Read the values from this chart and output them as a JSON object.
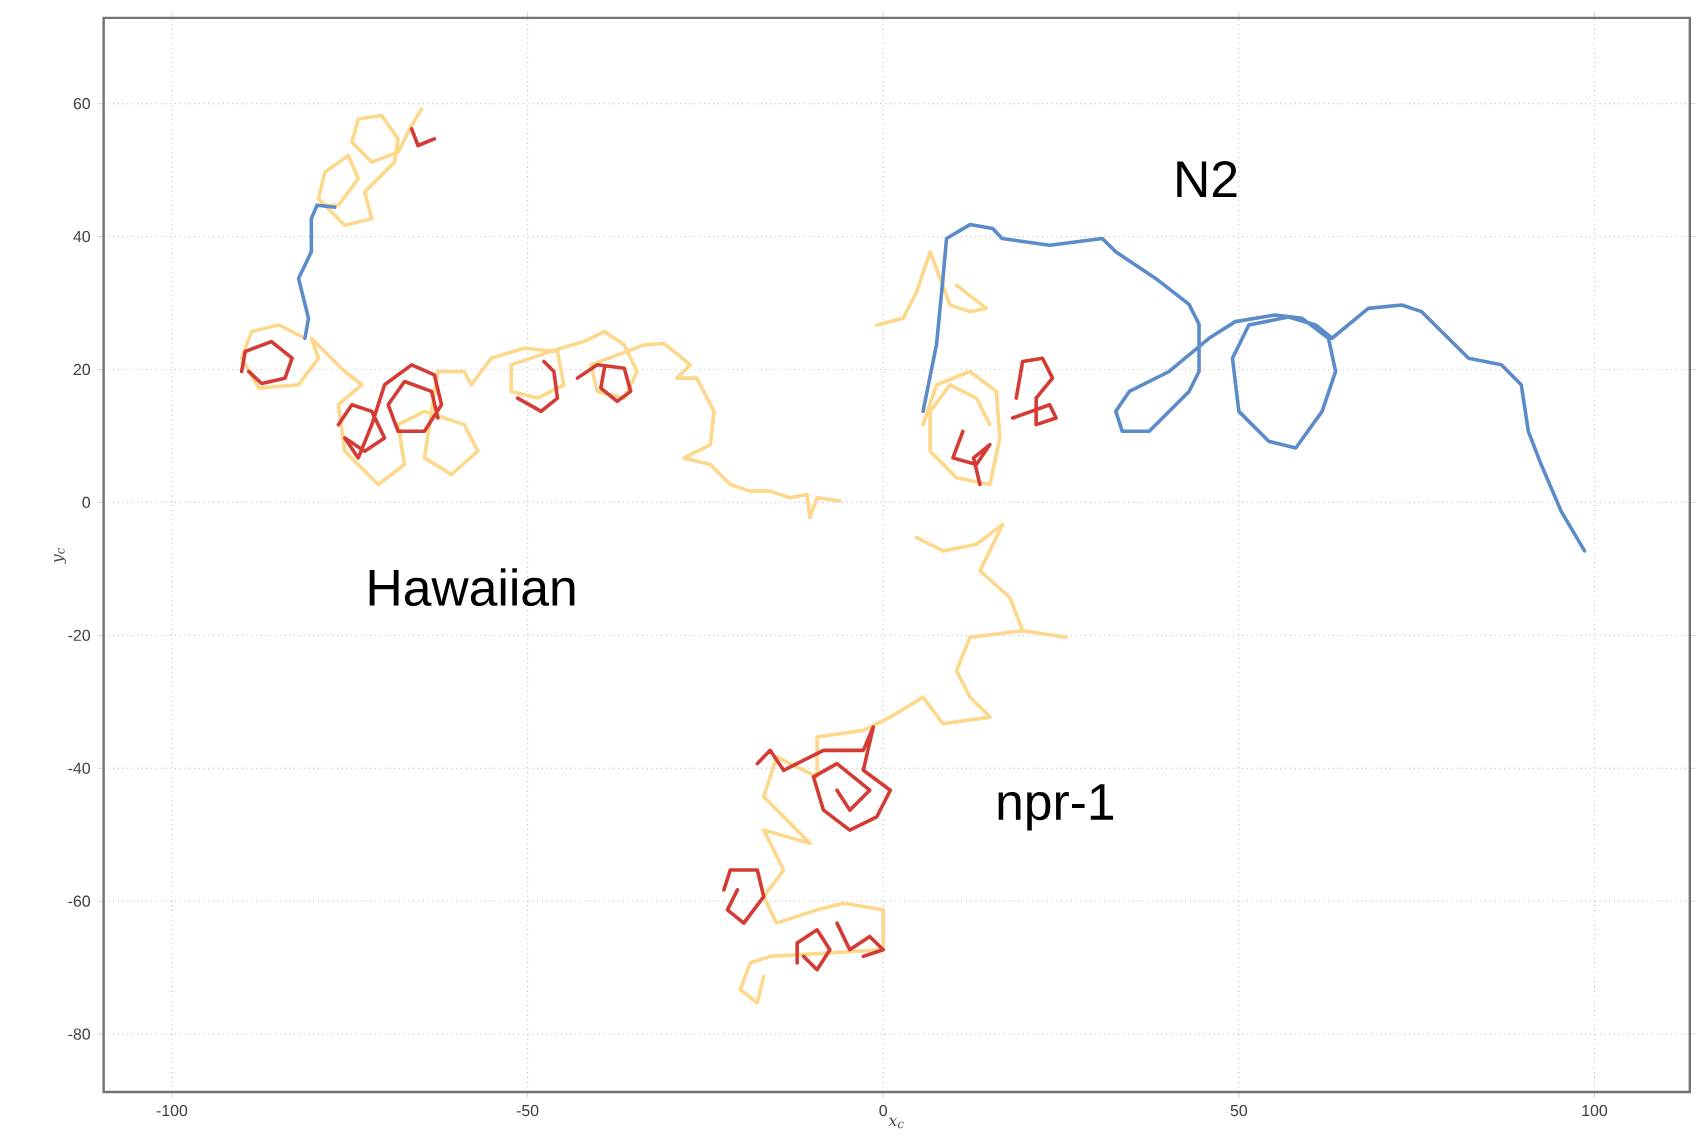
{
  "chart_data": {
    "type": "line",
    "xlabel": "x$_{c}$",
    "ylabel": "y$_{c}$",
    "xlim": [
      -109.6,
      113.4
    ],
    "ylim": [
      -88.7,
      72.9
    ],
    "xticks": [
      -100,
      -50,
      0,
      50,
      100
    ],
    "yticks": [
      -80,
      -60,
      -40,
      -20,
      0,
      20,
      40,
      60
    ],
    "grid": true,
    "marker": "none",
    "line_style": "solid",
    "annotations": [
      "N2",
      "Hawaiian",
      "npr-1"
    ],
    "series": [
      {
        "color": "#fdd78a",
        "x": [
          -64.9,
          -66.3,
          -68.2,
          -71.9,
          -74.7,
          -73.8,
          -70.5,
          -68.2,
          -68.7,
          -72.9,
          -71.9,
          -75.7,
          -79.4,
          -78.5,
          -75.2,
          -73.8,
          -76.6,
          -79.4
        ],
        "values": [
          59.2,
          56.7,
          52.7,
          51.2,
          54.2,
          57.7,
          58.2,
          54.7,
          51.2,
          46.7,
          42.7,
          41.7,
          45.7,
          49.7,
          52.2,
          48.7,
          44.7,
          44.7
        ]
      },
      {
        "color": "#fdd78a",
        "x": [
          -81.3,
          -85,
          -88.8,
          -90.2,
          -87.8,
          -82.2,
          -79.4,
          -80.4,
          -75.7,
          -73.3,
          -76.6,
          -75.7,
          -71,
          -67.3,
          -68.2,
          -64.5,
          -58.9,
          -57,
          -60.7,
          -64.5,
          -62.6,
          -58.9,
          -57.9,
          -55.1,
          -50.5,
          -45.8,
          -44.9,
          -48.6,
          -52.3,
          -52.3,
          -46.8,
          -42.1,
          -39.2,
          -36.4,
          -34.6,
          -36.4,
          -40.2,
          -41.1,
          -33.6,
          -30.8,
          -27.1,
          -29,
          -26.2,
          -23.8,
          -24.3,
          -28,
          -24.3,
          -21.5,
          -18.7,
          -15.9,
          -13.1,
          -10.7,
          -10.3,
          -9.3,
          -6.1
        ],
        "values": [
          24.7,
          26.7,
          25.7,
          21.7,
          17.2,
          17.7,
          21.7,
          24.7,
          19.7,
          17.7,
          14.7,
          7.7,
          2.7,
          5.7,
          11.7,
          13.7,
          11.7,
          7.7,
          4.2,
          6.7,
          19.7,
          19.7,
          17.7,
          21.7,
          23.2,
          22.7,
          17.7,
          15.7,
          16.7,
          20.7,
          22.7,
          24.2,
          25.7,
          23.7,
          19.7,
          15.7,
          16.7,
          20.7,
          23.7,
          23.9,
          20.7,
          18.7,
          18.7,
          13.7,
          8.7,
          6.7,
          5.7,
          2.7,
          1.7,
          1.7,
          0.7,
          1.2,
          -2.3,
          0.7,
          0.2
        ]
      },
      {
        "color": "#d33b34",
        "x": [
          -90.2,
          -89.7,
          -86,
          -83.1,
          -84.1,
          -87.4,
          -89.2
        ],
        "values": [
          19.7,
          22.7,
          24.2,
          21.7,
          18.7,
          17.9,
          19.7
        ]
      },
      {
        "color": "#d33b34",
        "x": [
          -76.6,
          -74.7,
          -71.9,
          -70.1,
          -72.9,
          -75.7,
          -73.8,
          -71.9,
          -70.1,
          -66.3,
          -63.1,
          -62.1,
          -64.5,
          -68.2,
          -69.6,
          -67.3,
          -63.5,
          -62.6
        ],
        "values": [
          11.7,
          14.7,
          13.7,
          9.7,
          7.7,
          9.7,
          6.7,
          11.7,
          17.7,
          20.7,
          19.2,
          14.7,
          10.7,
          10.7,
          14.7,
          18.2,
          16.7,
          12.7
        ]
      },
      {
        "color": "#d33b34",
        "x": [
          -51.4,
          -48.1,
          -45.8,
          -46.3,
          -47.7
        ],
        "values": [
          15.7,
          13.7,
          15.7,
          19.7,
          21.2
        ]
      },
      {
        "color": "#d33b34",
        "x": [
          -43,
          -40.2,
          -36.4,
          -35.5,
          -37.4,
          -39.7,
          -39.2
        ],
        "values": [
          18.7,
          20.7,
          20.2,
          16.7,
          15.2,
          17.2,
          20.2
        ]
      },
      {
        "color": "#d33b34",
        "x": [
          -66.3,
          -65.4,
          -63.1
        ],
        "values": [
          56.2,
          53.7,
          54.7
        ]
      },
      {
        "color": "#5b8bc8",
        "x": [
          -81.3,
          -80.8,
          -82.2,
          -80.4,
          -80.4,
          -79.6,
          -77.1
        ],
        "values": [
          24.7,
          27.7,
          33.7,
          37.7,
          42.7,
          44.7,
          44.4
        ]
      },
      {
        "color": "#fdd78a",
        "x": [
          -0.9,
          2.8,
          4.7,
          6.6,
          8,
          9.4,
          12.2,
          14.5,
          10.3
        ],
        "values": [
          26.7,
          27.7,
          31.7,
          37.7,
          33.7,
          29.7,
          28.7,
          29.2,
          32.7
        ]
      },
      {
        "color": "#fdd78a",
        "x": [
          5.6,
          7.5,
          12.2,
          15.9,
          16.4,
          15,
          10.3,
          6.6,
          6.6,
          9.4,
          13.1,
          15
        ],
        "values": [
          11.7,
          17.7,
          19.7,
          16.7,
          9.7,
          2.7,
          3.7,
          7.7,
          13.7,
          17.7,
          15.7,
          11.7
        ]
      },
      {
        "color": "#5b8bc8",
        "x": [
          5.6,
          7.5,
          8.4,
          8.9,
          12.2,
          15.4,
          16.7,
          23.4,
          30.8,
          32.7,
          38.3,
          43,
          44.4,
          44.4,
          43,
          37.4,
          33.6,
          32.7,
          34.6,
          40.2,
          45.8,
          49.5,
          55.1,
          58.9,
          62.6,
          63.6,
          61.7,
          58,
          54.2,
          50,
          49.1,
          51.4,
          57,
          60.8,
          63.1,
          68.2,
          72.9,
          75.7,
          82.3,
          86.9,
          89.7,
          90.7,
          92.5,
          95.3,
          98.6
        ],
        "values": [
          13.7,
          23.8,
          33.7,
          39.7,
          41.8,
          41.2,
          39.7,
          38.7,
          39.7,
          37.7,
          33.7,
          29.8,
          26.8,
          19.7,
          16.7,
          10.7,
          10.7,
          13.7,
          16.7,
          19.7,
          24.7,
          27.2,
          28.2,
          27.7,
          24.7,
          19.7,
          13.7,
          8.2,
          9.2,
          13.7,
          21.7,
          26.7,
          27.9,
          26.7,
          24.7,
          29.2,
          29.7,
          28.7,
          21.7,
          20.7,
          17.7,
          10.7,
          5.7,
          -1.3,
          -7.3
        ]
      },
      {
        "color": "#d33b34",
        "x": [
          11.2,
          9.8,
          13.1,
          15,
          12.7,
          13.6
        ],
        "values": [
          10.7,
          6.7,
          5.7,
          8.7,
          6.7,
          2.7
        ]
      },
      {
        "color": "#d33b34",
        "x": [
          18.7,
          19.6,
          22.4,
          23.8,
          21.5,
          21.5,
          24.3,
          23.4,
          18.2
        ],
        "values": [
          15.7,
          21.2,
          21.7,
          18.7,
          15.7,
          11.7,
          12.7,
          14.7,
          12.7
        ]
      },
      {
        "color": "#fdd78a",
        "x": [
          4.7,
          8.4,
          13.1,
          16.8,
          13.6,
          17.8,
          19.6,
          25.7,
          19.6,
          12.2,
          10.3,
          12.2,
          15,
          8.4,
          5.6,
          1,
          -2.8,
          -9.3,
          -9.3,
          -15,
          -16.8,
          -10.3,
          -16.8,
          -14,
          -16.8,
          -15,
          -9.3,
          -5.6,
          0,
          0,
          -15.9,
          -18.7,
          -20.1,
          -17.7,
          -16.8
        ],
        "values": [
          -5.3,
          -7.3,
          -6.3,
          -3.3,
          -10.3,
          -14.3,
          -19.3,
          -20.3,
          -19.3,
          -20.3,
          -25.3,
          -29.3,
          -32.3,
          -33.3,
          -29.3,
          -32.3,
          -34.3,
          -35.3,
          -41.3,
          -38.3,
          -44.3,
          -51.3,
          -49.3,
          -55.3,
          -59.3,
          -63.3,
          -61.3,
          -60.3,
          -61.3,
          -67.3,
          -68.3,
          -69.3,
          -73.3,
          -75.3,
          -71.3
        ]
      },
      {
        "color": "#d33b34",
        "x": [
          -17.7,
          -15.9,
          -14,
          -8.4,
          -2.8,
          -1.4,
          -2.8,
          1,
          -0.9,
          -4.7,
          -8.4,
          -9.8,
          -6.5,
          -1.9,
          -4.7,
          -6.5
        ],
        "values": [
          -39.3,
          -37.3,
          -40.3,
          -37.3,
          -37.3,
          -33.8,
          -40.3,
          -43.3,
          -47.3,
          -49.3,
          -46.3,
          -41.3,
          -39.3,
          -43.3,
          -46.3,
          -43.3
        ]
      },
      {
        "color": "#d33b34",
        "x": [
          -22.4,
          -21.5,
          -17.7,
          -16.8,
          -19.6,
          -21.9,
          -20.5
        ],
        "values": [
          -58.3,
          -55.3,
          -55.3,
          -59.3,
          -63.3,
          -61.3,
          -58.3
        ]
      },
      {
        "color": "#d33b34",
        "x": [
          -12.1,
          -12.1,
          -9.3,
          -7.5,
          -9.3,
          -11.2
        ],
        "values": [
          -69.3,
          -66.3,
          -64.3,
          -67.3,
          -70.3,
          -68.3
        ]
      },
      {
        "color": "#d33b34",
        "x": [
          -6.5,
          -4.7,
          -1.9,
          0,
          -2.8
        ],
        "values": [
          -63.3,
          -67.3,
          -65.3,
          -67.3,
          -68.3
        ]
      }
    ]
  }
}
